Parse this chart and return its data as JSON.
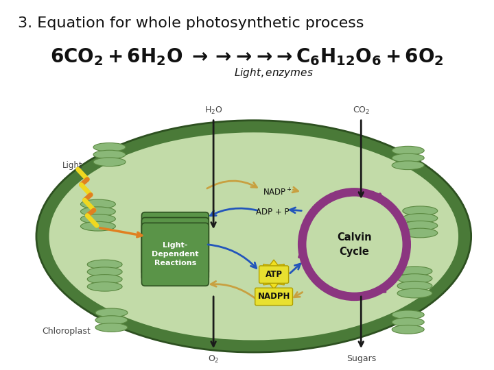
{
  "title": "3. Equation for whole photosynthetic process",
  "background_color": "#ffffff",
  "title_fontsize": 16,
  "equation_fontsize": 20,
  "label_fontsize": 11,
  "chloroplast_outer_color": "#4a7a38",
  "chloroplast_inner_color": "#c2dba8",
  "ldr_box_color": "#5a9448",
  "ldr_text_color": "#ffffff",
  "calvin_circle_color": "#8b3580",
  "atp_box_color": "#e8e030",
  "nadph_box_color": "#e8e030",
  "arrow_dark": "#1a1a1a",
  "arrow_blue": "#2255bb",
  "arrow_tan": "#c8a040",
  "zigzag_yellow": "#f0d820",
  "zigzag_orange": "#e08020",
  "granum_face": "#8ab878",
  "granum_edge": "#5a8840",
  "text_light": "Light",
  "text_h2o": "H$_2$O",
  "text_co2": "CO$_2$",
  "text_nadp": "NADP$^+$",
  "text_adp": "ADP + P",
  "text_atp": "ATP",
  "text_nadph": "NADPH",
  "text_ldr": "Light-\nDependent\nReactions",
  "text_calvin": "Calvin\nCycle",
  "text_chloroplast": "Chloroplast",
  "text_o2": "O$_2$",
  "text_sugars": "Sugars"
}
